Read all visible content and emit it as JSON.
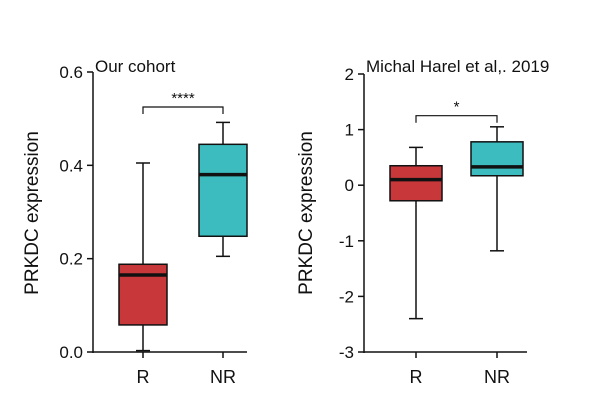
{
  "chart_data": [
    {
      "type": "box",
      "title": "Our cohort",
      "ylabel": "PRKDC expression",
      "xlabel": "",
      "ylim": [
        0,
        0.6
      ],
      "yticks": [
        "0.0",
        "0.2",
        "0.4",
        "0.6"
      ],
      "categories": [
        "R",
        "NR"
      ],
      "boxes": [
        {
          "name": "R",
          "color": "#c8383a",
          "min": 0.003,
          "q1": 0.058,
          "median": 0.165,
          "q3": 0.188,
          "max": 0.405
        },
        {
          "name": "NR",
          "color": "#3cbcbf",
          "min": 0.205,
          "q1": 0.248,
          "median": 0.38,
          "q3": 0.445,
          "max": 0.492
        }
      ],
      "significance": "****",
      "sig_level": 0.525,
      "grid": false
    },
    {
      "type": "box",
      "title": "Michal Harel et al,. 2019",
      "ylabel": "PRKDC expression",
      "xlabel": "",
      "ylim": [
        -3,
        2
      ],
      "yticks": [
        "-3",
        "-2",
        "-1",
        "0",
        "1",
        "2"
      ],
      "categories": [
        "R",
        "NR"
      ],
      "boxes": [
        {
          "name": "R",
          "color": "#c8383a",
          "min": -2.4,
          "q1": -0.28,
          "median": 0.1,
          "q3": 0.35,
          "max": 0.68
        },
        {
          "name": "NR",
          "color": "#3cbcbf",
          "min": -1.18,
          "q1": 0.17,
          "median": 0.33,
          "q3": 0.78,
          "max": 1.05
        }
      ],
      "significance": "*",
      "sig_level": 1.25,
      "grid": false
    }
  ]
}
